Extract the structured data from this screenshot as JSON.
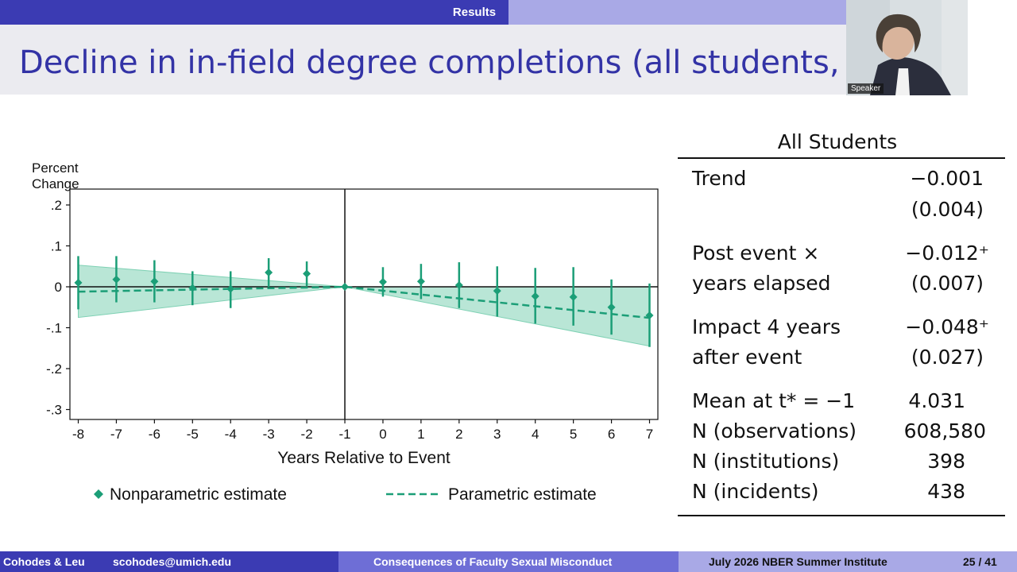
{
  "header": {
    "section": "Results",
    "title": "Decline in in-field degree completions (all students, all",
    "speaker_label": "Speaker"
  },
  "colors": {
    "accent": "#1b9e77",
    "band": "#7fd1b4",
    "bar_dark": "#3b3bb3",
    "bar_light": "#a9a9e6",
    "title_color": "#3333a6"
  },
  "chart_data": {
    "type": "scatter",
    "ylabel_lines": [
      "Percent",
      "Change"
    ],
    "xlabel": "Years Relative to Event",
    "x_ticks": [
      "-8",
      "-7",
      "-6",
      "-5",
      "-4",
      "-3",
      "-2",
      "-1",
      "0",
      "1",
      "2",
      "3",
      "4",
      "5",
      "6",
      "7"
    ],
    "y_ticks": [
      ".2",
      ".1",
      "0",
      "-.1",
      "-.2",
      "-.3"
    ],
    "y_tick_values": [
      0.2,
      0.1,
      0,
      -0.1,
      -0.2,
      -0.3
    ],
    "xlim": [
      -8,
      7
    ],
    "ylim": [
      -0.32,
      0.22
    ],
    "event_line_x": -1,
    "series": [
      {
        "name": "Nonparametric estimate",
        "marker": "diamond",
        "x": [
          -8,
          -7,
          -6,
          -5,
          -4,
          -3,
          -2,
          -1,
          0,
          1,
          2,
          3,
          4,
          5,
          6,
          7
        ],
        "y": [
          0.01,
          0.018,
          0.013,
          -0.003,
          -0.005,
          0.035,
          0.032,
          0.0,
          0.012,
          0.013,
          0.004,
          -0.01,
          -0.023,
          -0.025,
          -0.05,
          -0.07
        ],
        "ci_low": [
          -0.055,
          -0.038,
          -0.038,
          -0.045,
          -0.052,
          0.0,
          0.002,
          0.0,
          -0.024,
          -0.03,
          -0.052,
          -0.073,
          -0.09,
          -0.095,
          -0.117,
          -0.147
        ],
        "ci_high": [
          0.075,
          0.075,
          0.065,
          0.038,
          0.038,
          0.07,
          0.062,
          0.0,
          0.048,
          0.056,
          0.06,
          0.05,
          0.046,
          0.048,
          0.018,
          0.008
        ]
      },
      {
        "name": "Parametric estimate",
        "line": "dashed",
        "x": [
          -8,
          -1,
          7
        ],
        "y": [
          -0.012,
          0.0,
          -0.076
        ],
        "band_low": [
          -0.075,
          0.0,
          -0.145
        ],
        "band_high": [
          0.053,
          0.0,
          0.0
        ]
      }
    ],
    "legend": {
      "placement": "bottom"
    }
  },
  "stats": {
    "header": "All Students",
    "rows": [
      {
        "label": "Trend",
        "value": "−0.001"
      },
      {
        "label": "",
        "value": "(0.004)"
      },
      {
        "label": "Post event ×",
        "value": "−0.012⁺"
      },
      {
        "label": "years elapsed",
        "value": "(0.007)"
      },
      {
        "label": "Impact 4 years",
        "value": "−0.048⁺"
      },
      {
        "label": "after event",
        "value": "(0.027)"
      },
      {
        "label": "Mean at t* = −1",
        "value": "4.031"
      },
      {
        "label": "N (observations)",
        "value": "608,580"
      },
      {
        "label": "N (institutions)",
        "value": "398"
      },
      {
        "label": "N (incidents)",
        "value": "438"
      }
    ]
  },
  "footer": {
    "authors": "Cohodes & Leu",
    "email": "scohodes@umich.edu",
    "talk_title": "Consequences of Faculty Sexual Misconduct",
    "venue": "July 2026  NBER Summer Institute",
    "page": "25 / 41"
  }
}
